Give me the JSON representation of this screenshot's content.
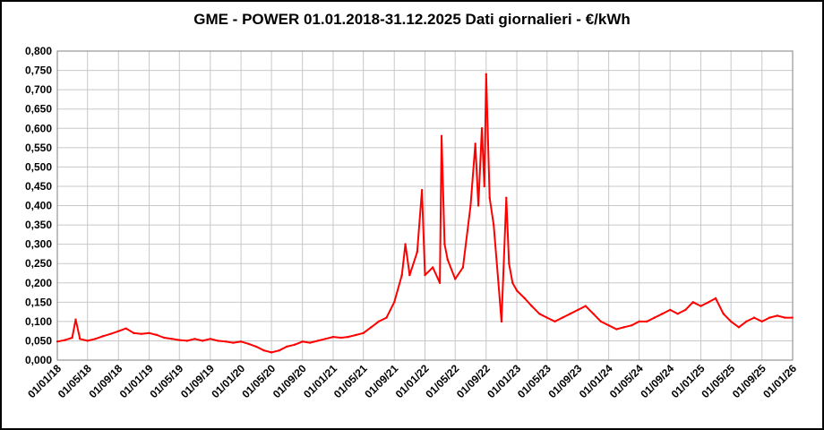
{
  "chart_data": {
    "type": "line",
    "title": "GME - POWER 01.01.2018-31.12.2025 Dati giornalieri - €/kWh",
    "xlabel": "",
    "ylabel": "",
    "ylim": [
      0,
      0.8
    ],
    "xlim": [
      "2018-01-01",
      "2026-01-01"
    ],
    "grid": true,
    "legend": "none",
    "line_color": "#ff0000",
    "y_ticks": [
      "0,000",
      "0,050",
      "0,100",
      "0,150",
      "0,200",
      "0,250",
      "0,300",
      "0,350",
      "0,400",
      "0,450",
      "0,500",
      "0,550",
      "0,600",
      "0,650",
      "0,700",
      "0,750",
      "0,800"
    ],
    "x_ticks": [
      {
        "date": "2018-01-01",
        "label": "01/01/18"
      },
      {
        "date": "2018-05-01",
        "label": "01/05/18"
      },
      {
        "date": "2018-09-01",
        "label": "01/09/18"
      },
      {
        "date": "2019-01-01",
        "label": "01/01/19"
      },
      {
        "date": "2019-05-01",
        "label": "01/05/19"
      },
      {
        "date": "2019-09-01",
        "label": "01/09/19"
      },
      {
        "date": "2020-01-01",
        "label": "01/01/20"
      },
      {
        "date": "2020-05-01",
        "label": "01/05/20"
      },
      {
        "date": "2020-09-01",
        "label": "01/09/20"
      },
      {
        "date": "2021-01-01",
        "label": "01/01/21"
      },
      {
        "date": "2021-05-01",
        "label": "01/05/21"
      },
      {
        "date": "2021-09-01",
        "label": "01/09/21"
      },
      {
        "date": "2022-01-01",
        "label": "01/01/22"
      },
      {
        "date": "2022-05-01",
        "label": "01/05/22"
      },
      {
        "date": "2022-09-01",
        "label": "01/09/22"
      },
      {
        "date": "2023-01-01",
        "label": "01/01/23"
      },
      {
        "date": "2023-05-01",
        "label": "01/05/23"
      },
      {
        "date": "2023-09-01",
        "label": "01/09/23"
      },
      {
        "date": "2024-01-01",
        "label": "01/01/24"
      },
      {
        "date": "2024-05-01",
        "label": "01/05/24"
      },
      {
        "date": "2024-09-01",
        "label": "01/09/24"
      },
      {
        "date": "2025-01-01",
        "label": "01/01/25"
      },
      {
        "date": "2025-05-01",
        "label": "01/05/25"
      },
      {
        "date": "2025-09-01",
        "label": "01/09/25"
      },
      {
        "date": "2026-01-01",
        "label": "01/01/26"
      }
    ],
    "series": [
      {
        "x": [
          "2018-01-01",
          "2018-02-01",
          "2018-03-01",
          "2018-03-15",
          "2018-04-01",
          "2018-05-01",
          "2018-06-01",
          "2018-07-01",
          "2018-08-01",
          "2018-09-01",
          "2018-10-01",
          "2018-11-01",
          "2018-12-01",
          "2019-01-01",
          "2019-02-01",
          "2019-03-01",
          "2019-04-01",
          "2019-05-01",
          "2019-06-01",
          "2019-07-01",
          "2019-08-01",
          "2019-09-01",
          "2019-10-01",
          "2019-11-01",
          "2019-12-01",
          "2020-01-01",
          "2020-02-01",
          "2020-03-01",
          "2020-04-01",
          "2020-05-01",
          "2020-06-01",
          "2020-07-01",
          "2020-08-01",
          "2020-09-01",
          "2020-10-01",
          "2020-11-01",
          "2020-12-01",
          "2021-01-01",
          "2021-02-01",
          "2021-03-01",
          "2021-04-01",
          "2021-05-01",
          "2021-06-01",
          "2021-07-01",
          "2021-08-01",
          "2021-09-01",
          "2021-10-01",
          "2021-10-15",
          "2021-11-01",
          "2021-12-01",
          "2021-12-20",
          "2022-01-01",
          "2022-02-01",
          "2022-03-01",
          "2022-03-08",
          "2022-03-20",
          "2022-04-01",
          "2022-05-01",
          "2022-06-01",
          "2022-07-01",
          "2022-07-20",
          "2022-08-01",
          "2022-08-15",
          "2022-08-25",
          "2022-09-01",
          "2022-09-15",
          "2022-10-01",
          "2022-10-20",
          "2022-11-01",
          "2022-11-20",
          "2022-12-01",
          "2022-12-15",
          "2023-01-01",
          "2023-02-01",
          "2023-03-01",
          "2023-04-01",
          "2023-05-01",
          "2023-06-01",
          "2023-07-01",
          "2023-08-01",
          "2023-09-01",
          "2023-10-01",
          "2023-11-01",
          "2023-12-01",
          "2024-01-01",
          "2024-02-01",
          "2024-03-01",
          "2024-04-01",
          "2024-05-01",
          "2024-06-01",
          "2024-07-01",
          "2024-08-01",
          "2024-09-01",
          "2024-10-01",
          "2024-11-01",
          "2024-12-01",
          "2025-01-01",
          "2025-02-01",
          "2025-03-01",
          "2025-04-01",
          "2025-05-01",
          "2025-06-01",
          "2025-07-01",
          "2025-08-01",
          "2025-09-01",
          "2025-10-01",
          "2025-11-01",
          "2025-12-01",
          "2025-12-31"
        ],
        "values": [
          0.048,
          0.052,
          0.058,
          0.105,
          0.055,
          0.05,
          0.055,
          0.062,
          0.068,
          0.075,
          0.082,
          0.07,
          0.068,
          0.07,
          0.065,
          0.058,
          0.055,
          0.052,
          0.05,
          0.055,
          0.05,
          0.055,
          0.05,
          0.048,
          0.045,
          0.048,
          0.042,
          0.035,
          0.025,
          0.02,
          0.025,
          0.035,
          0.04,
          0.048,
          0.045,
          0.05,
          0.055,
          0.06,
          0.058,
          0.06,
          0.065,
          0.07,
          0.085,
          0.1,
          0.11,
          0.15,
          0.22,
          0.3,
          0.22,
          0.28,
          0.44,
          0.22,
          0.24,
          0.2,
          0.58,
          0.3,
          0.26,
          0.21,
          0.24,
          0.4,
          0.56,
          0.4,
          0.6,
          0.45,
          0.74,
          0.42,
          0.35,
          0.2,
          0.1,
          0.42,
          0.25,
          0.2,
          0.18,
          0.16,
          0.14,
          0.12,
          0.11,
          0.1,
          0.11,
          0.12,
          0.13,
          0.14,
          0.12,
          0.1,
          0.09,
          0.08,
          0.085,
          0.09,
          0.1,
          0.1,
          0.11,
          0.12,
          0.13,
          0.12,
          0.13,
          0.15,
          0.14,
          0.15,
          0.16,
          0.12,
          0.1,
          0.085,
          0.1,
          0.11,
          0.1,
          0.11,
          0.115,
          0.11,
          0.11
        ]
      }
    ]
  }
}
